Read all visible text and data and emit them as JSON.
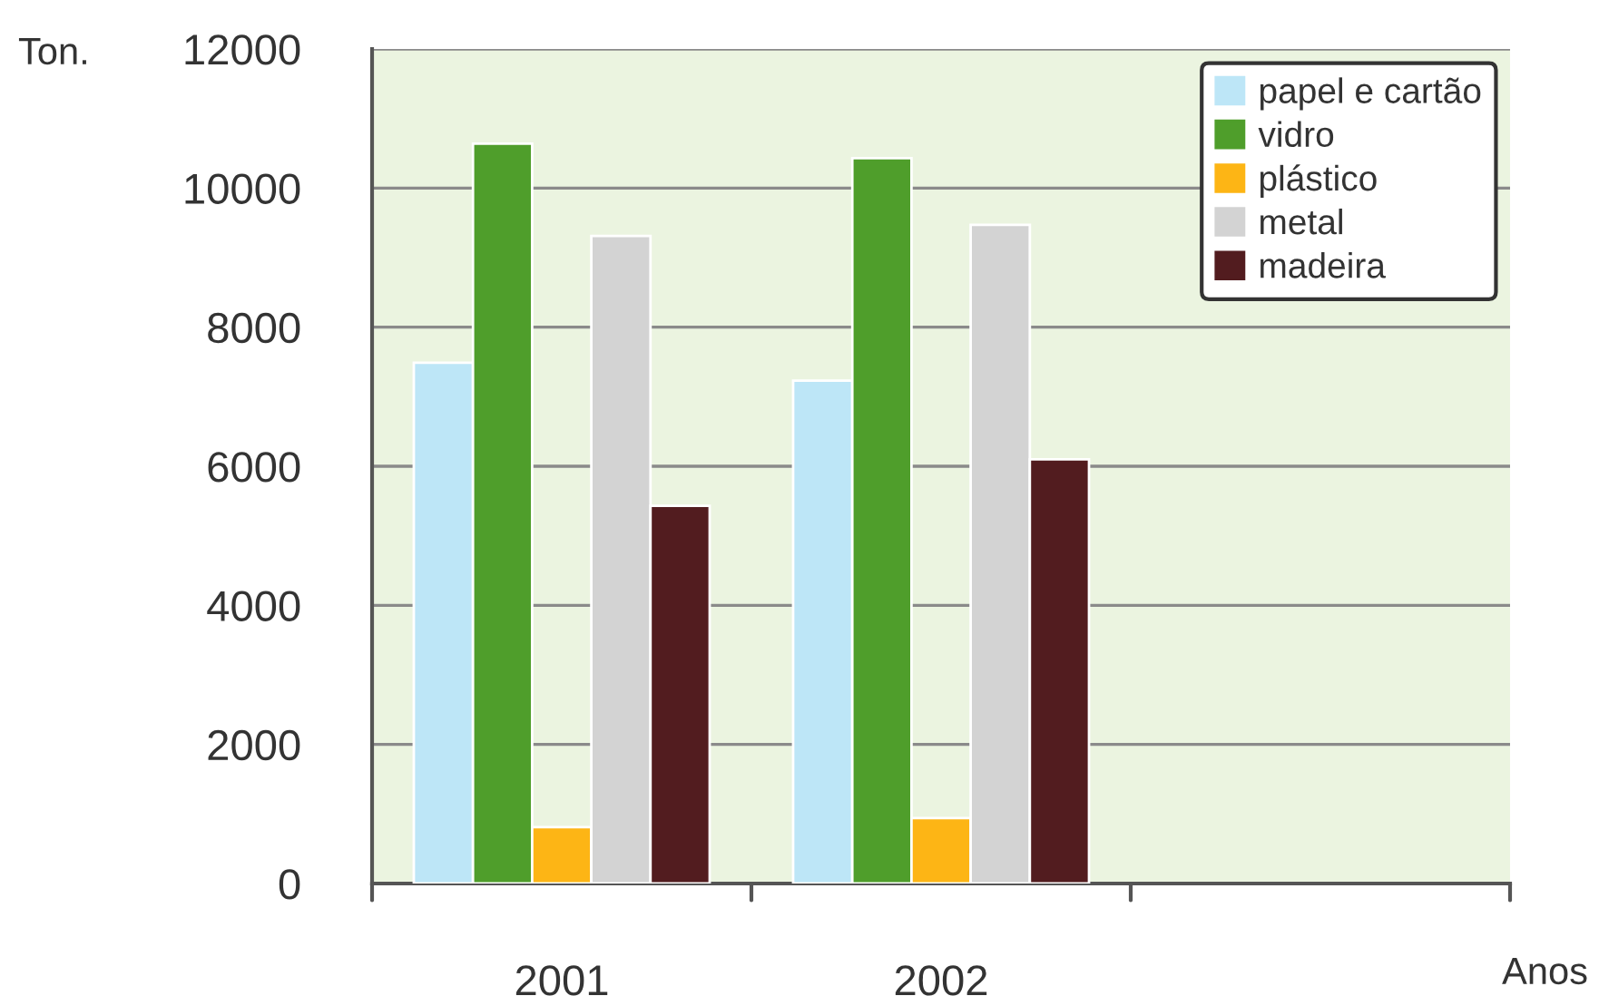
{
  "chart_data": {
    "type": "bar",
    "categories": [
      "2001",
      "2002",
      null
    ],
    "xlabel": "Anos",
    "ylabel": "Ton.",
    "series": [
      {
        "name": "papel e cartão",
        "color": "#bde6f7",
        "values": [
          7490,
          7230,
          null
        ]
      },
      {
        "name": "vidro",
        "color": "#4f9e2b",
        "values": [
          10640,
          10430,
          null
        ]
      },
      {
        "name": "plástico",
        "color": "#fdb515",
        "values": [
          810,
          940,
          null
        ]
      },
      {
        "name": "metal",
        "color": "#d3d3d3",
        "values": [
          9310,
          9470,
          null
        ]
      },
      {
        "name": "madeira",
        "color": "#521c1f",
        "values": [
          5430,
          6100,
          null
        ]
      }
    ],
    "ylim": [
      0,
      12000
    ],
    "yticks": [
      0,
      2000,
      4000,
      6000,
      8000,
      10000,
      12000
    ],
    "grid": "y",
    "legend": "top right"
  }
}
